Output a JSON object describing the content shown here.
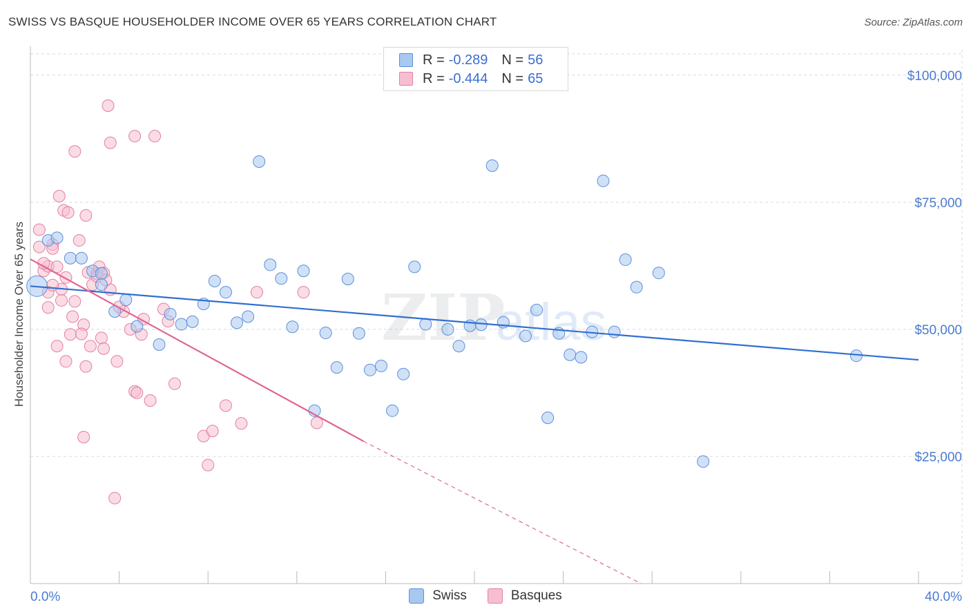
{
  "title": "SWISS VS BASQUE HOUSEHOLDER INCOME OVER 65 YEARS CORRELATION CHART",
  "source": "Source: ZipAtlas.com",
  "watermark": {
    "zip": "ZIP",
    "atlas": "atlas"
  },
  "legend": {
    "swiss": {
      "r_label": "R =",
      "r_value": "-0.289",
      "n_label": "N =",
      "n_value": "56"
    },
    "basques": {
      "r_label": "R =",
      "r_value": "-0.444",
      "n_label": "N =",
      "n_value": "65"
    }
  },
  "bottom_legend": {
    "swiss": "Swiss",
    "basques": "Basques"
  },
  "colors": {
    "swiss_fill": "#a9c8f0",
    "swiss_stroke": "#5b8fd9",
    "swiss_line": "#2f6fd1",
    "basques_fill": "#f6bfd0",
    "basques_stroke": "#e37fa1",
    "basques_line": "#e0668f",
    "tick_text": "#4a7bd0",
    "grid": "#d9d9d9"
  },
  "chart_data": {
    "type": "scatter",
    "ylabel": "Householder Income Over 65 years",
    "xlim": [
      0,
      40
    ],
    "ylim": [
      0,
      105000
    ],
    "x_tick_labels": [
      "0.0%",
      "40.0%"
    ],
    "y_ticks": [
      25000,
      50000,
      75000,
      100000
    ],
    "y_tick_labels": [
      "$25,000",
      "$50,000",
      "$75,000",
      "$100,000"
    ],
    "grid": true,
    "series": [
      {
        "name": "Swiss",
        "points": [
          [
            0.3,
            58500
          ],
          [
            0.8,
            67500
          ],
          [
            1.2,
            68000
          ],
          [
            1.8,
            64000
          ],
          [
            2.3,
            64000
          ],
          [
            2.8,
            61500
          ],
          [
            3.2,
            61000
          ],
          [
            3.2,
            58800
          ],
          [
            3.8,
            53500
          ],
          [
            4.3,
            55800
          ],
          [
            4.8,
            50600
          ],
          [
            5.8,
            47000
          ],
          [
            6.3,
            53000
          ],
          [
            6.8,
            51000
          ],
          [
            7.3,
            51500
          ],
          [
            7.8,
            55000
          ],
          [
            8.3,
            59500
          ],
          [
            8.8,
            57300
          ],
          [
            9.3,
            51300
          ],
          [
            9.8,
            52500
          ],
          [
            10.3,
            83000
          ],
          [
            10.8,
            62700
          ],
          [
            11.3,
            60000
          ],
          [
            11.8,
            50500
          ],
          [
            12.3,
            61500
          ],
          [
            12.8,
            34000
          ],
          [
            13.3,
            49300
          ],
          [
            13.8,
            42500
          ],
          [
            14.3,
            59900
          ],
          [
            14.8,
            49200
          ],
          [
            15.3,
            42000
          ],
          [
            15.8,
            42800
          ],
          [
            16.3,
            34000
          ],
          [
            16.8,
            41200
          ],
          [
            17.3,
            62300
          ],
          [
            17.8,
            51000
          ],
          [
            18.8,
            50000
          ],
          [
            19.3,
            46700
          ],
          [
            19.8,
            50700
          ],
          [
            20.3,
            50900
          ],
          [
            20.8,
            82200
          ],
          [
            21.3,
            51400
          ],
          [
            22.3,
            48700
          ],
          [
            22.8,
            53800
          ],
          [
            23.3,
            32600
          ],
          [
            23.8,
            49200
          ],
          [
            24.3,
            45000
          ],
          [
            24.8,
            44500
          ],
          [
            25.3,
            49500
          ],
          [
            26.3,
            49500
          ],
          [
            25.8,
            79200
          ],
          [
            26.8,
            63700
          ],
          [
            27.3,
            58300
          ],
          [
            28.3,
            61100
          ],
          [
            30.3,
            24000
          ],
          [
            37.2,
            44800
          ]
        ]
      },
      {
        "name": "Basques",
        "points": [
          [
            0.4,
            69600
          ],
          [
            0.4,
            66200
          ],
          [
            0.6,
            61500
          ],
          [
            0.8,
            62400
          ],
          [
            0.8,
            57300
          ],
          [
            0.8,
            54300
          ],
          [
            1.0,
            66700
          ],
          [
            1.0,
            65900
          ],
          [
            1.2,
            46700
          ],
          [
            1.2,
            62300
          ],
          [
            1.3,
            76200
          ],
          [
            1.4,
            55700
          ],
          [
            1.4,
            57900
          ],
          [
            1.5,
            73400
          ],
          [
            1.6,
            60200
          ],
          [
            1.6,
            43700
          ],
          [
            1.7,
            73000
          ],
          [
            1.8,
            49000
          ],
          [
            2.0,
            55500
          ],
          [
            2.0,
            85000
          ],
          [
            2.2,
            67500
          ],
          [
            2.4,
            50900
          ],
          [
            2.4,
            28800
          ],
          [
            2.5,
            72400
          ],
          [
            2.5,
            42700
          ],
          [
            2.6,
            61200
          ],
          [
            2.7,
            46700
          ],
          [
            2.8,
            58800
          ],
          [
            3.0,
            61000
          ],
          [
            3.0,
            60400
          ],
          [
            3.1,
            62300
          ],
          [
            3.2,
            48300
          ],
          [
            3.3,
            61100
          ],
          [
            3.3,
            46200
          ],
          [
            3.5,
            94000
          ],
          [
            3.6,
            86700
          ],
          [
            3.6,
            57800
          ],
          [
            3.8,
            16800
          ],
          [
            3.9,
            43700
          ],
          [
            4.2,
            53500
          ],
          [
            4.5,
            50000
          ],
          [
            4.7,
            88000
          ],
          [
            4.7,
            37800
          ],
          [
            4.8,
            37500
          ],
          [
            5.0,
            49000
          ],
          [
            5.1,
            52000
          ],
          [
            5.4,
            36000
          ],
          [
            5.6,
            88000
          ],
          [
            6.0,
            54000
          ],
          [
            6.2,
            51600
          ],
          [
            6.5,
            39300
          ],
          [
            7.8,
            29000
          ],
          [
            8.0,
            23300
          ],
          [
            8.2,
            30000
          ],
          [
            8.8,
            35000
          ],
          [
            9.5,
            31500
          ],
          [
            10.2,
            57300
          ],
          [
            12.3,
            57300
          ],
          [
            12.9,
            31600
          ],
          [
            1.0,
            58700
          ],
          [
            2.3,
            49100
          ],
          [
            3.4,
            59700
          ],
          [
            0.6,
            63000
          ],
          [
            1.9,
            52500
          ],
          [
            4.0,
            54400
          ]
        ]
      }
    ],
    "trendlines": [
      {
        "series": "Swiss",
        "x": [
          0,
          40
        ],
        "y": [
          58500,
          44000
        ]
      },
      {
        "series": "Basques",
        "x": [
          0,
          15
        ],
        "y": [
          63800,
          28000
        ],
        "dashed_extension": {
          "x": [
            15,
            27.5
          ],
          "y": [
            28000,
            0
          ]
        }
      }
    ]
  }
}
